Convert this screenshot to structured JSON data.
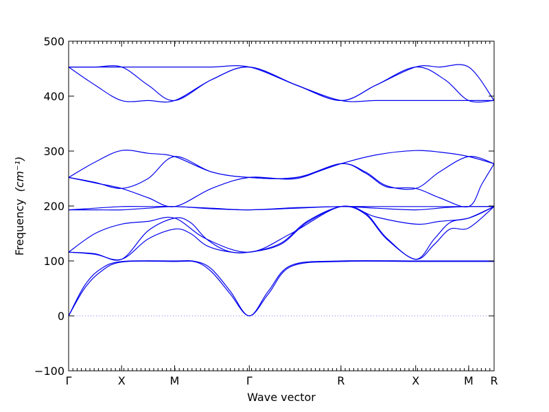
{
  "chart_data": {
    "type": "line",
    "xlabel": "Wave vector",
    "ylabel": "Frequency",
    "ylabel_unit": "(cm⁻¹)",
    "ylim": [
      -100,
      500
    ],
    "yticks": [
      -100,
      0,
      100,
      200,
      300,
      400,
      500
    ],
    "ytick_labels": [
      "−100",
      "0",
      "100",
      "200",
      "300",
      "400",
      "500"
    ],
    "xlim": [
      0,
      8.03
    ],
    "xticks": [
      {
        "label": "Γ",
        "pos": 0
      },
      {
        "label": "X",
        "pos": 1
      },
      {
        "label": "M",
        "pos": 2
      },
      {
        "label": "Γ",
        "pos": 3.41
      },
      {
        "label": "R",
        "pos": 5.14
      },
      {
        "label": "X",
        "pos": 6.55
      },
      {
        "label": "M",
        "pos": 7.55
      },
      {
        "label": "R",
        "pos": 8.03
      }
    ],
    "zero_line": true,
    "grid": false,
    "color": "#0000ee",
    "series": [
      {
        "x": [
          0,
          0.3,
          0.6,
          1,
          2,
          2.4,
          2.7,
          3.05,
          3.41,
          3.77,
          4.2,
          5.14,
          6.55,
          7.55,
          8.03
        ],
        "y": [
          0,
          50,
          80,
          98,
          99,
          98,
          80,
          40,
          0,
          40,
          90,
          99,
          99,
          99,
          99
        ]
      },
      {
        "x": [
          0,
          0.3,
          0.6,
          1,
          2,
          2.4,
          2.7,
          3.05,
          3.41,
          3.77,
          4.2,
          5.14,
          6.55,
          7.55,
          8.03
        ],
        "y": [
          0,
          55,
          85,
          99,
          100,
          99,
          85,
          45,
          0,
          45,
          92,
          100,
          100,
          100,
          100
        ]
      },
      {
        "x": [
          0,
          0.5,
          1,
          1.5,
          2,
          2.3,
          2.6,
          3.0,
          3.41,
          4.0,
          4.5,
          5.14,
          5.6,
          6.0,
          6.55,
          6.9,
          7.2,
          7.55,
          8.03
        ],
        "y": [
          116,
          112,
          103,
          140,
          158,
          150,
          128,
          117,
          116,
          130,
          170,
          199,
          185,
          140,
          103,
          130,
          158,
          160,
          199
        ]
      },
      {
        "x": [
          0,
          0.5,
          1,
          1.5,
          2,
          2.3,
          2.6,
          3.0,
          3.41,
          4.0,
          4.5,
          5.14,
          5.6,
          6.0,
          6.55,
          6.9,
          7.2,
          7.55,
          8.03
        ],
        "y": [
          116,
          113,
          103,
          155,
          178,
          170,
          140,
          118,
          116,
          132,
          172,
          199,
          187,
          142,
          103,
          140,
          170,
          178,
          199
        ]
      },
      {
        "x": [
          0,
          0.5,
          1,
          1.5,
          2,
          2.6,
          3.41,
          4.2,
          5.14,
          5.8,
          6.55,
          7.0,
          7.55,
          8.03
        ],
        "y": [
          116,
          150,
          167,
          172,
          178,
          140,
          116,
          150,
          199,
          180,
          167,
          172,
          178,
          199
        ]
      },
      {
        "x": [
          0,
          0.5,
          1,
          1.5,
          2,
          2.7,
          3.41,
          4.3,
          5.14,
          5.8,
          6.55,
          7.1,
          7.55,
          8.03
        ],
        "y": [
          193,
          193,
          193,
          196,
          199,
          195,
          193,
          196,
          199,
          196,
          193,
          197,
          199,
          199
        ]
      },
      {
        "x": [
          0,
          0.5,
          1,
          1.5,
          2,
          2.7,
          3.41,
          4.3,
          5.14,
          5.8,
          6.55,
          7.1,
          7.55,
          8.03
        ],
        "y": [
          193,
          196,
          199,
          199,
          199,
          196,
          193,
          197,
          199,
          199,
          199,
          199,
          199,
          199
        ]
      },
      {
        "x": [
          0,
          0.5,
          1,
          1.5,
          2,
          2.7,
          3.41,
          4.3,
          5.14,
          5.6,
          6.0,
          6.55,
          7.0,
          7.55,
          7.8,
          8.03
        ],
        "y": [
          252,
          242,
          232,
          215,
          199,
          232,
          252,
          250,
          277,
          260,
          235,
          232,
          215,
          199,
          240,
          277
        ]
      },
      {
        "x": [
          0,
          0.5,
          1,
          1.5,
          2,
          2.7,
          3.41,
          4.3,
          5.14,
          5.6,
          6.0,
          6.55,
          7.0,
          7.55,
          8.03
        ],
        "y": [
          252,
          243,
          232,
          250,
          290,
          262,
          252,
          252,
          277,
          262,
          237,
          232,
          262,
          290,
          277
        ]
      },
      {
        "x": [
          0,
          0.5,
          1,
          1.5,
          2,
          2.7,
          3.41,
          4.3,
          5.14,
          5.8,
          6.55,
          7.1,
          7.55,
          8.03
        ],
        "y": [
          252,
          280,
          301,
          296,
          290,
          262,
          252,
          252,
          277,
          293,
          301,
          297,
          290,
          277
        ]
      },
      {
        "x": [
          0,
          0.5,
          1,
          1.5,
          2,
          2.7,
          3.41,
          4.3,
          5.14,
          5.8,
          6.55,
          7.0,
          7.55,
          8.03
        ],
        "y": [
          453,
          453,
          453,
          453,
          453,
          453,
          453,
          420,
          392,
          420,
          453,
          453,
          453,
          392
        ]
      },
      {
        "x": [
          0,
          0.5,
          1,
          1.5,
          2,
          2.7,
          3.41,
          4.3,
          5.14,
          5.8,
          6.55,
          7.0,
          7.55,
          8.03
        ],
        "y": [
          453,
          420,
          392,
          392,
          392,
          430,
          453,
          420,
          392,
          392,
          392,
          392,
          392,
          392
        ]
      },
      {
        "x": [
          0,
          0.5,
          1,
          1.5,
          2,
          2.7,
          3.41,
          4.3,
          5.14,
          5.8,
          6.55,
          7.1,
          7.55,
          8.03
        ],
        "y": [
          453,
          453,
          453,
          420,
          392,
          430,
          453,
          420,
          392,
          420,
          453,
          430,
          392,
          392
        ]
      }
    ]
  }
}
